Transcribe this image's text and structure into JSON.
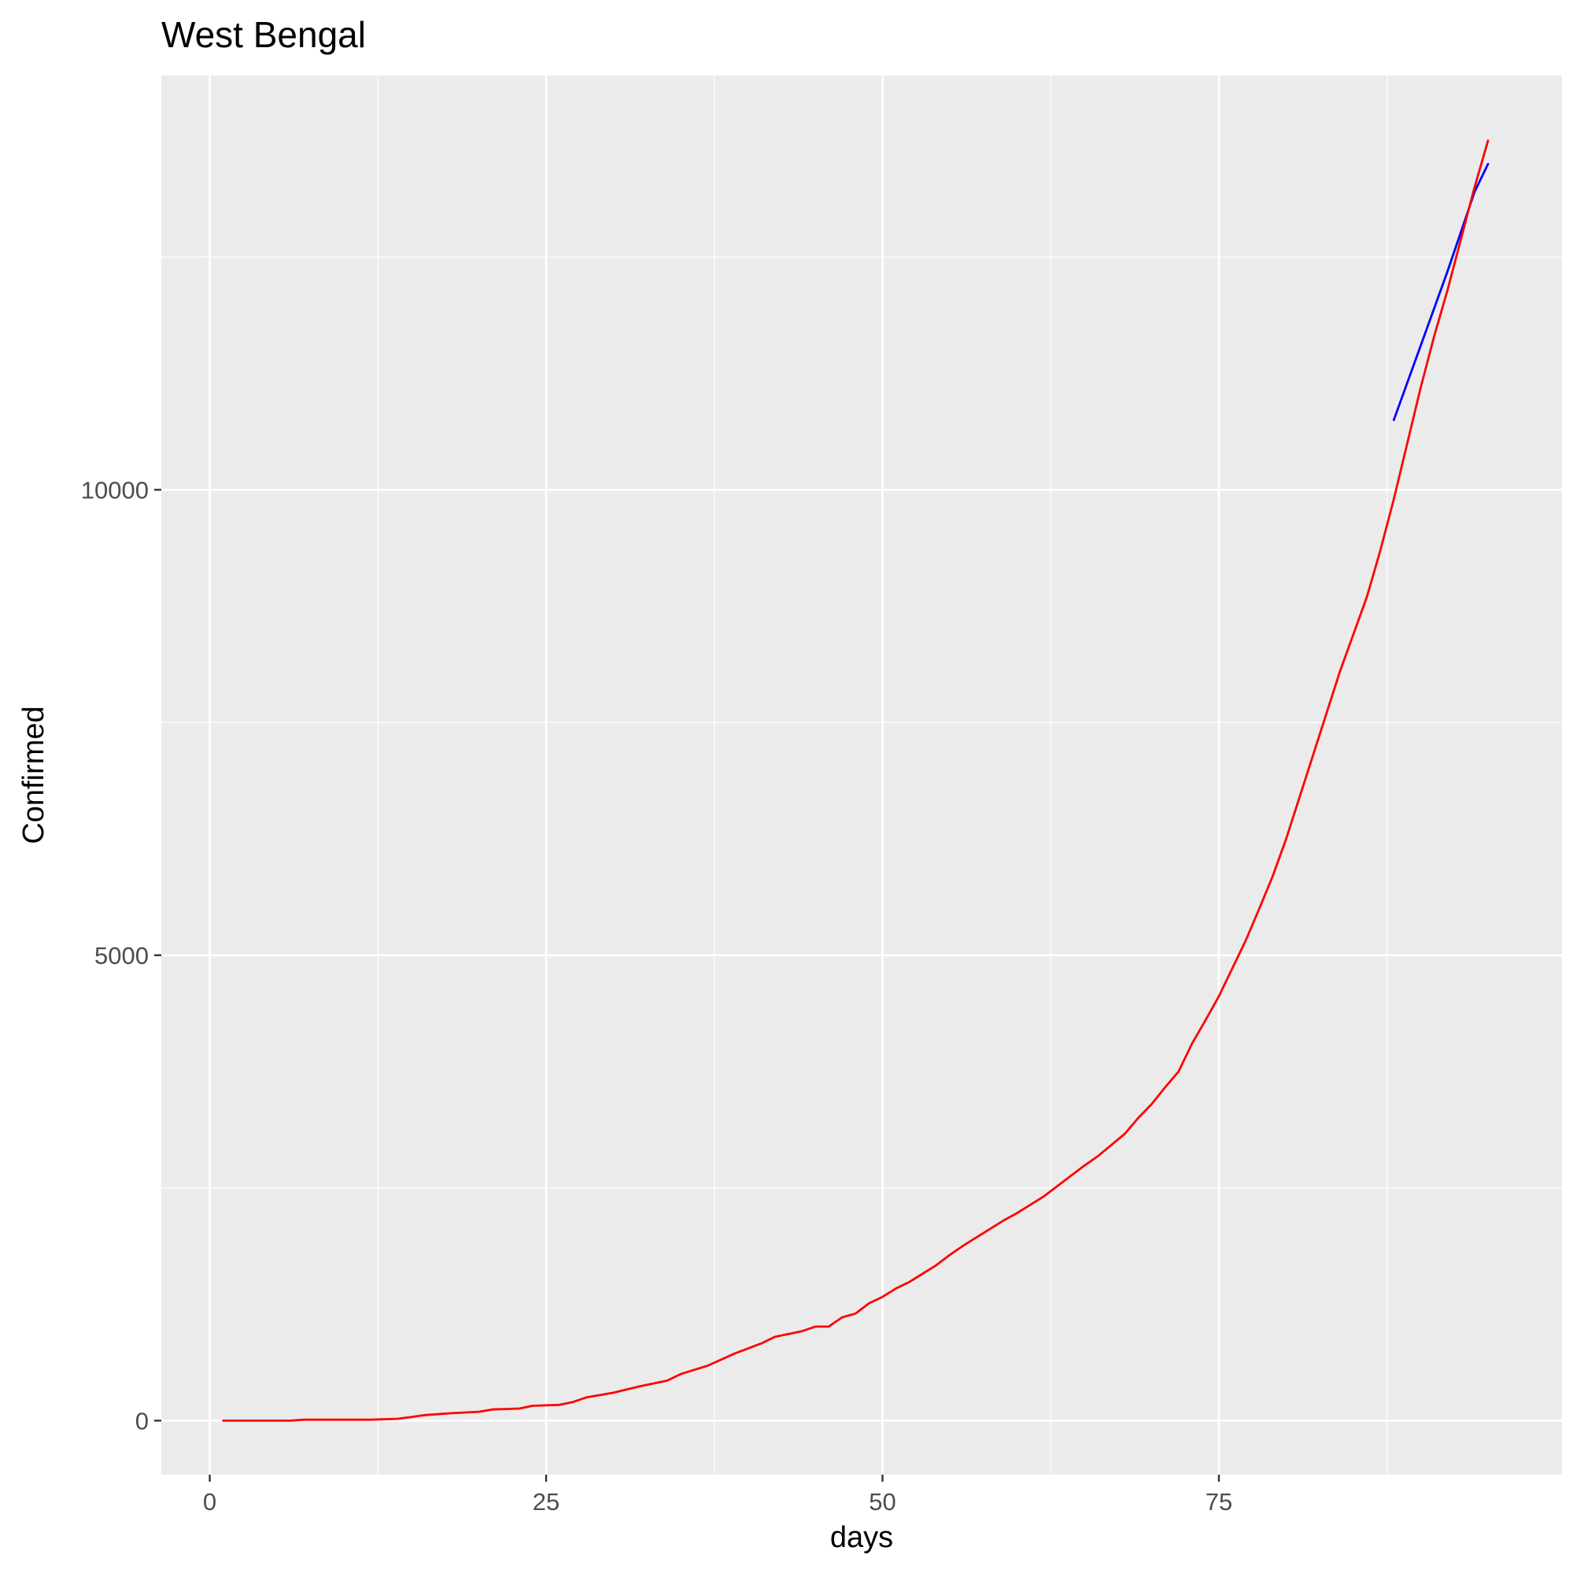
{
  "chart_data": {
    "type": "line",
    "title": "West Bengal",
    "xlabel": "days",
    "ylabel": "Confirmed",
    "xlim": [
      -3.6,
      100.5
    ],
    "ylim": [
      -580,
      14450
    ],
    "x_ticks": [
      0,
      25,
      50,
      75
    ],
    "x_tick_labels": [
      "0",
      "25",
      "50",
      "75"
    ],
    "y_ticks": [
      0,
      5000,
      10000
    ],
    "y_tick_labels": [
      "0",
      "5000",
      "10000"
    ],
    "grid": true,
    "legend": "none",
    "series": [
      {
        "color": "#0000ff",
        "x": [
          88,
          90,
          92,
          94,
          95
        ],
        "y": [
          10750,
          11550,
          12350,
          13200,
          13500
        ]
      },
      {
        "color": "#ff0000",
        "x": [
          1,
          6,
          7,
          12,
          14,
          15,
          16,
          18,
          20,
          21,
          23,
          24,
          26,
          27,
          28,
          30,
          32,
          34,
          35,
          37,
          39,
          41,
          42,
          44,
          45,
          46,
          47,
          48,
          49,
          50,
          51,
          52,
          53,
          54,
          55,
          56,
          57,
          58,
          59,
          60,
          61,
          62,
          63,
          64,
          65,
          66,
          67,
          68,
          69,
          70,
          71,
          72,
          73,
          74,
          75,
          76,
          77,
          78,
          79,
          80,
          81,
          82,
          83,
          84,
          85,
          86,
          87,
          88,
          89,
          90,
          91,
          92,
          93,
          94,
          95
        ],
        "y": [
          0,
          0,
          10,
          10,
          20,
          40,
          60,
          80,
          95,
          120,
          130,
          160,
          170,
          200,
          250,
          300,
          370,
          430,
          500,
          590,
          720,
          830,
          900,
          960,
          1010,
          1010,
          1110,
          1150,
          1260,
          1330,
          1420,
          1490,
          1580,
          1670,
          1780,
          1880,
          1970,
          2060,
          2150,
          2230,
          2320,
          2410,
          2520,
          2630,
          2740,
          2840,
          2960,
          3080,
          3250,
          3400,
          3580,
          3750,
          4050,
          4300,
          4560,
          4860,
          5160,
          5500,
          5850,
          6250,
          6700,
          7150,
          7600,
          8050,
          8450,
          8850,
          9350,
          9900,
          10500,
          11100,
          11650,
          12150,
          12700,
          13250,
          13750
        ]
      }
    ]
  }
}
